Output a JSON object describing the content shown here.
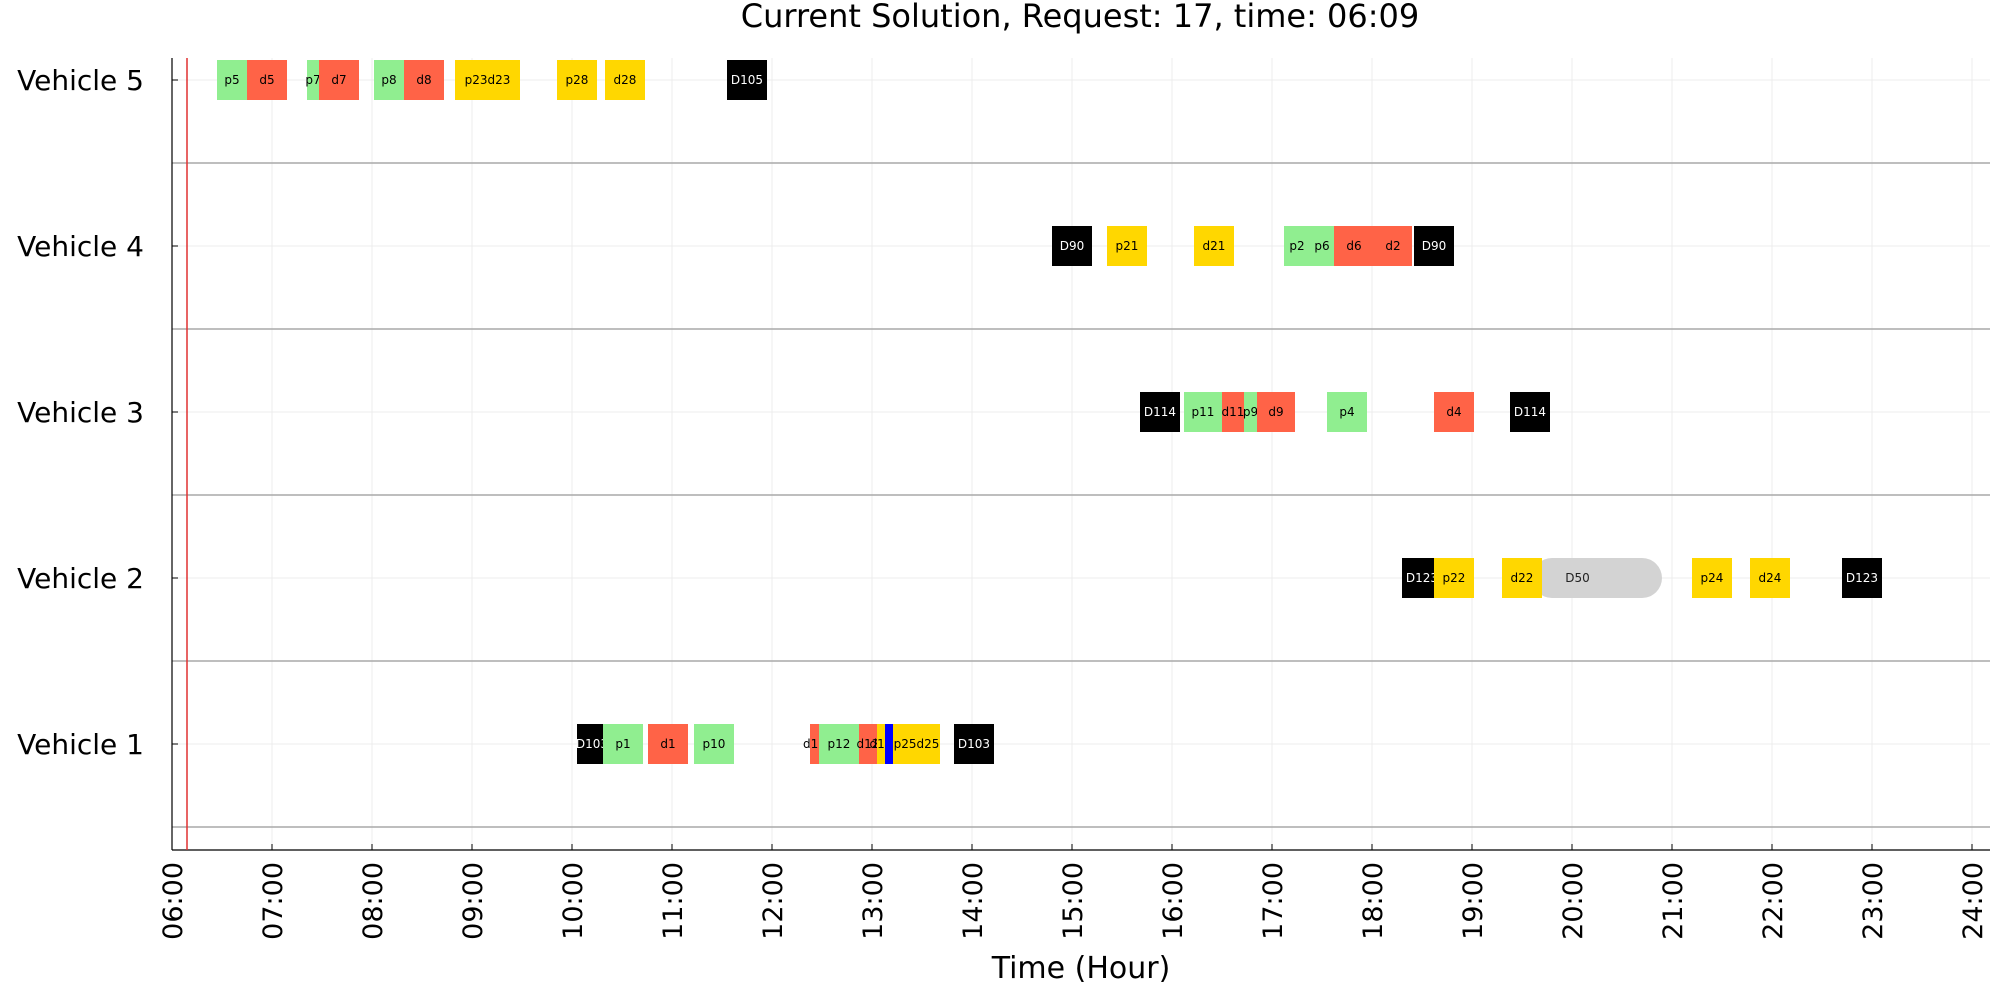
{
  "chart_data": {
    "type": "gantt",
    "title": "Current Solution, Request: 17, time: 06:09",
    "xlabel": "Time (Hour)",
    "x_tick_labels": [
      "06:00",
      "07:00",
      "08:00",
      "09:00",
      "10:00",
      "11:00",
      "12:00",
      "13:00",
      "14:00",
      "15:00",
      "16:00",
      "17:00",
      "18:00",
      "19:00",
      "20:00",
      "21:00",
      "22:00",
      "23:00",
      "24:00"
    ],
    "xlim_hours": [
      6.0,
      24.15
    ],
    "current_time_hours": 6.15,
    "grid": true,
    "colors": {
      "pickup": "#90EE90",
      "dropoff": "#FF6347",
      "planned": "#FFD700",
      "depot": "#000000",
      "waiting": "#D3D3D3",
      "marker": "#0000FF",
      "now_line": "#E03030"
    },
    "rows": [
      {
        "name": "Vehicle 5",
        "blocks": [
          {
            "label": "p5",
            "start": 6.45,
            "end": 6.75,
            "kind": "pickup"
          },
          {
            "label": "d5",
            "start": 6.75,
            "end": 7.15,
            "kind": "dropoff"
          },
          {
            "label": "p7",
            "start": 7.35,
            "end": 7.47,
            "kind": "pickup"
          },
          {
            "label": "d7",
            "start": 7.47,
            "end": 7.87,
            "kind": "dropoff"
          },
          {
            "label": "p8",
            "start": 8.02,
            "end": 8.32,
            "kind": "pickup"
          },
          {
            "label": "d8",
            "start": 8.32,
            "end": 8.72,
            "kind": "dropoff"
          },
          {
            "label": "p23d23",
            "start": 8.83,
            "end": 9.48,
            "kind": "planned"
          },
          {
            "label": "p28",
            "start": 9.85,
            "end": 10.25,
            "kind": "planned"
          },
          {
            "label": "d28",
            "start": 10.33,
            "end": 10.73,
            "kind": "planned"
          },
          {
            "label": "D105",
            "start": 11.55,
            "end": 11.95,
            "kind": "depot"
          }
        ]
      },
      {
        "name": "Vehicle 4",
        "blocks": [
          {
            "label": "D90",
            "start": 14.8,
            "end": 15.2,
            "kind": "depot"
          },
          {
            "label": "p21",
            "start": 15.35,
            "end": 15.75,
            "kind": "planned"
          },
          {
            "label": "d21",
            "start": 16.22,
            "end": 16.62,
            "kind": "planned"
          },
          {
            "label": "p2",
            "start": 17.12,
            "end": 17.38,
            "kind": "pickup"
          },
          {
            "label": "p6",
            "start": 17.38,
            "end": 17.62,
            "kind": "pickup"
          },
          {
            "label": "d6",
            "start": 17.62,
            "end": 18.02,
            "kind": "dropoff"
          },
          {
            "label": "d2",
            "start": 18.02,
            "end": 18.4,
            "kind": "dropoff"
          },
          {
            "label": "D90",
            "start": 18.42,
            "end": 18.82,
            "kind": "depot"
          }
        ]
      },
      {
        "name": "Vehicle 3",
        "blocks": [
          {
            "label": "D114",
            "start": 15.68,
            "end": 16.08,
            "kind": "depot"
          },
          {
            "label": "p11",
            "start": 16.12,
            "end": 16.5,
            "kind": "pickup"
          },
          {
            "label": "d11",
            "start": 16.5,
            "end": 16.72,
            "kind": "dropoff"
          },
          {
            "label": "p9",
            "start": 16.72,
            "end": 16.85,
            "kind": "pickup"
          },
          {
            "label": "d9",
            "start": 16.85,
            "end": 17.23,
            "kind": "dropoff"
          },
          {
            "label": "p4",
            "start": 17.55,
            "end": 17.95,
            "kind": "pickup"
          },
          {
            "label": "d4",
            "start": 18.62,
            "end": 19.02,
            "kind": "dropoff"
          },
          {
            "label": "D114",
            "start": 19.38,
            "end": 19.78,
            "kind": "depot"
          }
        ]
      },
      {
        "name": "Vehicle 2",
        "blocks": [
          {
            "label": "D123",
            "start": 18.3,
            "end": 18.7,
            "kind": "depot"
          },
          {
            "label": "p22",
            "start": 18.62,
            "end": 19.02,
            "kind": "planned"
          },
          {
            "label": "D50",
            "start": 19.6,
            "end": 20.9,
            "kind": "waiting"
          },
          {
            "label": "d22",
            "start": 19.3,
            "end": 19.7,
            "kind": "planned"
          },
          {
            "label": "p24",
            "start": 21.2,
            "end": 21.6,
            "kind": "planned"
          },
          {
            "label": "d24",
            "start": 21.78,
            "end": 22.18,
            "kind": "planned"
          },
          {
            "label": "D123",
            "start": 22.7,
            "end": 23.1,
            "kind": "depot"
          }
        ]
      },
      {
        "name": "Vehicle 1",
        "blocks": [
          {
            "label": "D103",
            "start": 10.05,
            "end": 10.35,
            "kind": "depot"
          },
          {
            "label": "p1",
            "start": 10.31,
            "end": 10.71,
            "kind": "pickup"
          },
          {
            "label": "d1",
            "start": 10.76,
            "end": 11.16,
            "kind": "dropoff"
          },
          {
            "label": "p10",
            "start": 11.22,
            "end": 11.62,
            "kind": "pickup"
          },
          {
            "label": "d10",
            "start": 12.38,
            "end": 12.47,
            "kind": "dropoff"
          },
          {
            "label": "p12",
            "start": 12.47,
            "end": 12.87,
            "kind": "pickup"
          },
          {
            "label": "d12",
            "start": 12.87,
            "end": 13.05,
            "kind": "dropoff"
          },
          {
            "label": "d12",
            "start": 13.05,
            "end": 13.13,
            "kind": "planned"
          },
          {
            "label": "",
            "start": 13.13,
            "end": 13.21,
            "kind": "marker"
          },
          {
            "label": "p25d25",
            "start": 13.21,
            "end": 13.68,
            "kind": "planned"
          },
          {
            "label": "D103",
            "start": 13.82,
            "end": 14.22,
            "kind": "depot"
          }
        ]
      }
    ]
  }
}
